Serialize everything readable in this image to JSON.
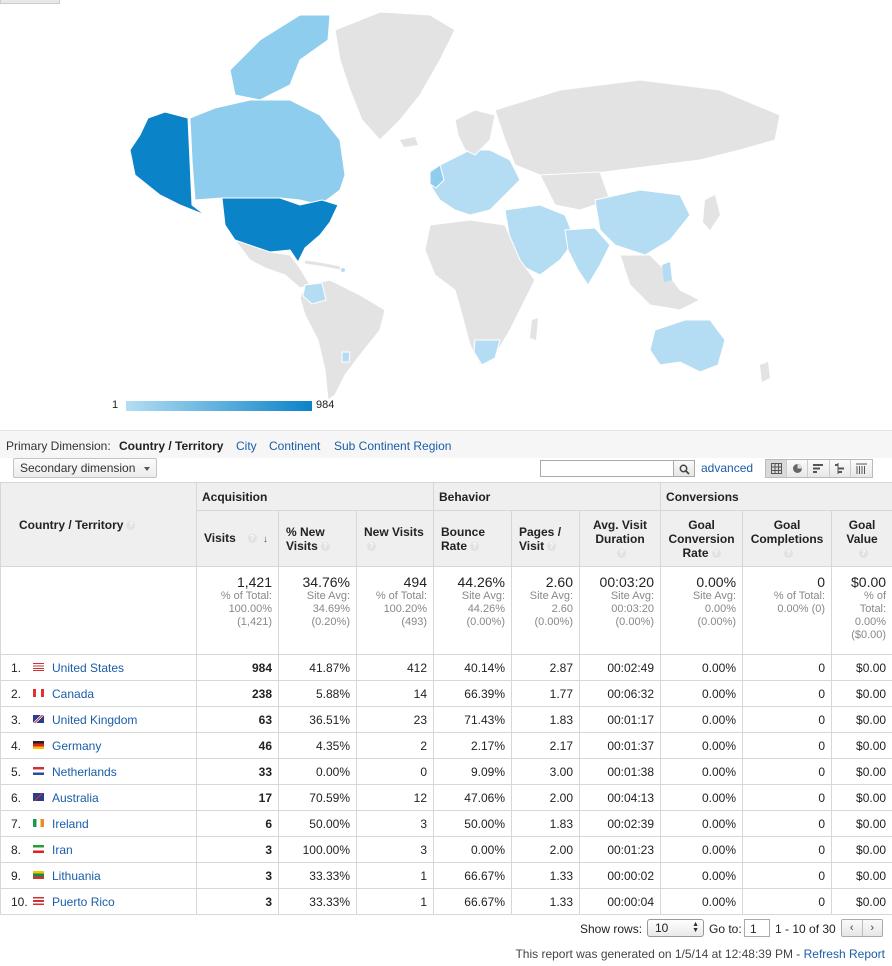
{
  "map": {
    "legend_min": "1",
    "legend_max": "984",
    "colors": {
      "low": "#b4ddf3",
      "high": "#0b83c8",
      "none": "#e3e3e3",
      "mid": "#8fcdee"
    }
  },
  "dimension_bar": {
    "label": "Primary Dimension:",
    "current": "Country / Territory",
    "links": [
      "City",
      "Continent",
      "Sub Continent Region"
    ]
  },
  "toolbar": {
    "secondary_dimension": "Secondary dimension",
    "search_value": "",
    "advanced": "advanced"
  },
  "table": {
    "groups": {
      "acquisition": "Acquisition",
      "behavior": "Behavior",
      "conversions": "Conversions"
    },
    "headers": {
      "country": "Country / Territory",
      "visits": "Visits",
      "pct_new_visits": "% New Visits",
      "new_visits": "New Visits",
      "bounce_rate": "Bounce Rate",
      "pages_visit": "Pages / Visit",
      "avg_duration": "Avg. Visit Duration",
      "goal_conv_rate": "Goal Conversion Rate",
      "goal_completions": "Goal Completions",
      "goal_value": "Goal Value"
    },
    "totals": {
      "visits": {
        "value": "1,421",
        "l1": "% of Total:",
        "l2": "100.00%",
        "l3": "(1,421)"
      },
      "pct_new_visits": {
        "value": "34.76%",
        "l1": "Site Avg:",
        "l2": "34.69%",
        "l3": "(0.20%)"
      },
      "new_visits": {
        "value": "494",
        "l1": "% of Total:",
        "l2": "100.20%",
        "l3": "(493)"
      },
      "bounce_rate": {
        "value": "44.26%",
        "l1": "Site Avg:",
        "l2": "44.26%",
        "l3": "(0.00%)"
      },
      "pages_visit": {
        "value": "2.60",
        "l1": "Site Avg:",
        "l2": "2.60",
        "l3": "(0.00%)"
      },
      "avg_duration": {
        "value": "00:03:20",
        "l1": "Site Avg:",
        "l2": "00:03:20",
        "l3": "(0.00%)"
      },
      "goal_conv_rate": {
        "value": "0.00%",
        "l1": "Site Avg:",
        "l2": "0.00%",
        "l3": "(0.00%)"
      },
      "goal_completions": {
        "value": "0",
        "l1": "% of Total:",
        "l2": "0.00% (0)",
        "l3": ""
      },
      "goal_value": {
        "value": "$0.00",
        "l1": "% of",
        "l2": "Total:",
        "l3": "0.00%",
        "l4": "($0.00)"
      }
    },
    "rows": [
      {
        "rank": "1.",
        "country": "United States",
        "flag": "us",
        "visits": "984",
        "pct_new": "41.87%",
        "new_visits": "412",
        "bounce": "40.14%",
        "pages": "2.87",
        "duration": "00:02:49",
        "conv_rate": "0.00%",
        "completions": "0",
        "value": "$0.00"
      },
      {
        "rank": "2.",
        "country": "Canada",
        "flag": "ca",
        "visits": "238",
        "pct_new": "5.88%",
        "new_visits": "14",
        "bounce": "66.39%",
        "pages": "1.77",
        "duration": "00:06:32",
        "conv_rate": "0.00%",
        "completions": "0",
        "value": "$0.00"
      },
      {
        "rank": "3.",
        "country": "United Kingdom",
        "flag": "gb",
        "visits": "63",
        "pct_new": "36.51%",
        "new_visits": "23",
        "bounce": "71.43%",
        "pages": "1.83",
        "duration": "00:01:17",
        "conv_rate": "0.00%",
        "completions": "0",
        "value": "$0.00"
      },
      {
        "rank": "4.",
        "country": "Germany",
        "flag": "de",
        "visits": "46",
        "pct_new": "4.35%",
        "new_visits": "2",
        "bounce": "2.17%",
        "pages": "2.17",
        "duration": "00:01:37",
        "conv_rate": "0.00%",
        "completions": "0",
        "value": "$0.00"
      },
      {
        "rank": "5.",
        "country": "Netherlands",
        "flag": "nl",
        "visits": "33",
        "pct_new": "0.00%",
        "new_visits": "0",
        "bounce": "9.09%",
        "pages": "3.00",
        "duration": "00:01:38",
        "conv_rate": "0.00%",
        "completions": "0",
        "value": "$0.00"
      },
      {
        "rank": "6.",
        "country": "Australia",
        "flag": "au",
        "visits": "17",
        "pct_new": "70.59%",
        "new_visits": "12",
        "bounce": "47.06%",
        "pages": "2.00",
        "duration": "00:04:13",
        "conv_rate": "0.00%",
        "completions": "0",
        "value": "$0.00"
      },
      {
        "rank": "7.",
        "country": "Ireland",
        "flag": "ie",
        "visits": "6",
        "pct_new": "50.00%",
        "new_visits": "3",
        "bounce": "50.00%",
        "pages": "1.83",
        "duration": "00:02:39",
        "conv_rate": "0.00%",
        "completions": "0",
        "value": "$0.00"
      },
      {
        "rank": "8.",
        "country": "Iran",
        "flag": "ir",
        "visits": "3",
        "pct_new": "100.00%",
        "new_visits": "3",
        "bounce": "0.00%",
        "pages": "2.00",
        "duration": "00:01:23",
        "conv_rate": "0.00%",
        "completions": "0",
        "value": "$0.00"
      },
      {
        "rank": "9.",
        "country": "Lithuania",
        "flag": "lt",
        "visits": "3",
        "pct_new": "33.33%",
        "new_visits": "1",
        "bounce": "66.67%",
        "pages": "1.33",
        "duration": "00:00:02",
        "conv_rate": "0.00%",
        "completions": "0",
        "value": "$0.00"
      },
      {
        "rank": "10.",
        "country": "Puerto Rico",
        "flag": "pr",
        "visits": "3",
        "pct_new": "33.33%",
        "new_visits": "1",
        "bounce": "66.67%",
        "pages": "1.33",
        "duration": "00:00:04",
        "conv_rate": "0.00%",
        "completions": "0",
        "value": "$0.00"
      }
    ]
  },
  "pager": {
    "show_rows_label": "Show rows:",
    "rows_value": "10",
    "goto_label": "Go to:",
    "goto_value": "1",
    "range": "1 - 10 of 30",
    "prev": "‹",
    "next": "›"
  },
  "footer": {
    "generated_text": "This report was generated on 1/5/14 at 12:48:39 PM - ",
    "refresh": "Refresh Report"
  }
}
